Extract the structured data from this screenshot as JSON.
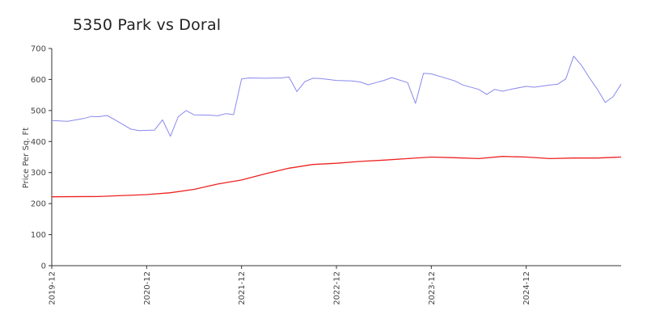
{
  "chart_data": {
    "type": "line",
    "title": "5350 Park vs Doral",
    "xlabel": "",
    "ylabel": "Price Per Sq. Ft",
    "ylim": [
      0,
      700
    ],
    "xlim": [
      "2019-12",
      "2025-12"
    ],
    "y_ticks": [
      0,
      100,
      200,
      300,
      400,
      500,
      600,
      700
    ],
    "x_ticks": [
      "2019-12",
      "2020-12",
      "2021-12",
      "2022-12",
      "2023-12",
      "2024-12"
    ],
    "grid": false,
    "legend": "none",
    "series": [
      {
        "color": "#8888ee",
        "points": [
          [
            "2019-12",
            468
          ],
          [
            "2020-02",
            465
          ],
          [
            "2020-04",
            474
          ],
          [
            "2020-05",
            481
          ],
          [
            "2020-06",
            480
          ],
          [
            "2020-07",
            484
          ],
          [
            "2020-08",
            470
          ],
          [
            "2020-09",
            455
          ],
          [
            "2020-10",
            440
          ],
          [
            "2020-11",
            435
          ],
          [
            "2021-01",
            437
          ],
          [
            "2021-02",
            470
          ],
          [
            "2021-03",
            417
          ],
          [
            "2021-04",
            480
          ],
          [
            "2021-05",
            500
          ],
          [
            "2021-06",
            486
          ],
          [
            "2021-08",
            485
          ],
          [
            "2021-09",
            483
          ],
          [
            "2021-10",
            490
          ],
          [
            "2021-11",
            487
          ],
          [
            "2021-12",
            602
          ],
          [
            "2022-01",
            605
          ],
          [
            "2022-03",
            604
          ],
          [
            "2022-05",
            605
          ],
          [
            "2022-06",
            608
          ],
          [
            "2022-07",
            561
          ],
          [
            "2022-08",
            593
          ],
          [
            "2022-09",
            604
          ],
          [
            "2022-10",
            603
          ],
          [
            "2022-12",
            597
          ],
          [
            "2023-02",
            595
          ],
          [
            "2023-03",
            592
          ],
          [
            "2023-04",
            583
          ],
          [
            "2023-05",
            590
          ],
          [
            "2023-06",
            597
          ],
          [
            "2023-07",
            606
          ],
          [
            "2023-09",
            590
          ],
          [
            "2023-10",
            523
          ],
          [
            "2023-11",
            620
          ],
          [
            "2023-12",
            618
          ],
          [
            "2024-02",
            603
          ],
          [
            "2024-03",
            595
          ],
          [
            "2024-04",
            582
          ],
          [
            "2024-06",
            568
          ],
          [
            "2024-07",
            552
          ],
          [
            "2024-08",
            568
          ],
          [
            "2024-09",
            562
          ],
          [
            "2024-10",
            568
          ],
          [
            "2024-12",
            578
          ],
          [
            "2025-01",
            575
          ],
          [
            "2025-03",
            582
          ],
          [
            "2025-04",
            585
          ],
          [
            "2025-05",
            602
          ],
          [
            "2025-06",
            675
          ],
          [
            "2025-07",
            645
          ],
          [
            "2025-08",
            605
          ],
          [
            "2025-09",
            568
          ],
          [
            "2025-10",
            526
          ],
          [
            "2025-11",
            545
          ],
          [
            "2025-12",
            585
          ]
        ]
      },
      {
        "color": "#ee2222",
        "points": [
          [
            "2019-12",
            222
          ],
          [
            "2020-06",
            223
          ],
          [
            "2020-12",
            229
          ],
          [
            "2021-03",
            235
          ],
          [
            "2021-06",
            246
          ],
          [
            "2021-09",
            263
          ],
          [
            "2021-12",
            276
          ],
          [
            "2022-03",
            296
          ],
          [
            "2022-06",
            314
          ],
          [
            "2022-09",
            326
          ],
          [
            "2022-12",
            330
          ],
          [
            "2023-03",
            336
          ],
          [
            "2023-06",
            340
          ],
          [
            "2023-09",
            345
          ],
          [
            "2023-12",
            350
          ],
          [
            "2024-03",
            348
          ],
          [
            "2024-06",
            345
          ],
          [
            "2024-09",
            352
          ],
          [
            "2024-12",
            350
          ],
          [
            "2025-03",
            345
          ],
          [
            "2025-06",
            347
          ],
          [
            "2025-09",
            347
          ],
          [
            "2025-12",
            350
          ]
        ]
      }
    ]
  }
}
